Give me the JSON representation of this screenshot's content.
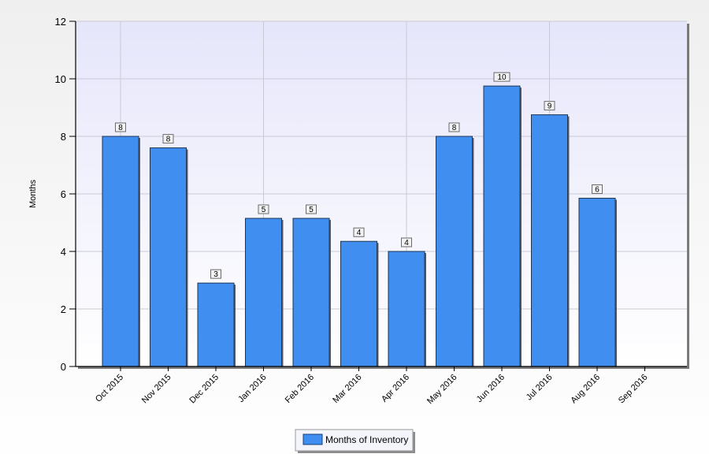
{
  "chart_data": {
    "type": "bar",
    "title": "",
    "xlabel": "",
    "ylabel": "Months",
    "ylim": [
      0,
      12
    ],
    "yticks": [
      0,
      2,
      4,
      6,
      8,
      10,
      12
    ],
    "grid": true,
    "legend_position": "bottom-center",
    "categories": [
      "Oct 2015",
      "Nov 2015",
      "Dec 2015",
      "Jan 2016",
      "Feb 2016",
      "Mar 2016",
      "Apr 2016",
      "May 2016",
      "Jun 2016",
      "Jul 2016",
      "Aug 2016",
      "Sep 2016"
    ],
    "series": [
      {
        "name": "Months of Inventory",
        "color": "#3f8ef0",
        "values": [
          8.0,
          7.6,
          2.9,
          5.15,
          5.15,
          4.35,
          4.0,
          8.0,
          9.75,
          8.75,
          5.85,
          null
        ],
        "data_labels": [
          "8",
          "8",
          "3",
          "5",
          "5",
          "4",
          "4",
          "8",
          "10",
          "9",
          "6",
          ""
        ]
      }
    ]
  }
}
